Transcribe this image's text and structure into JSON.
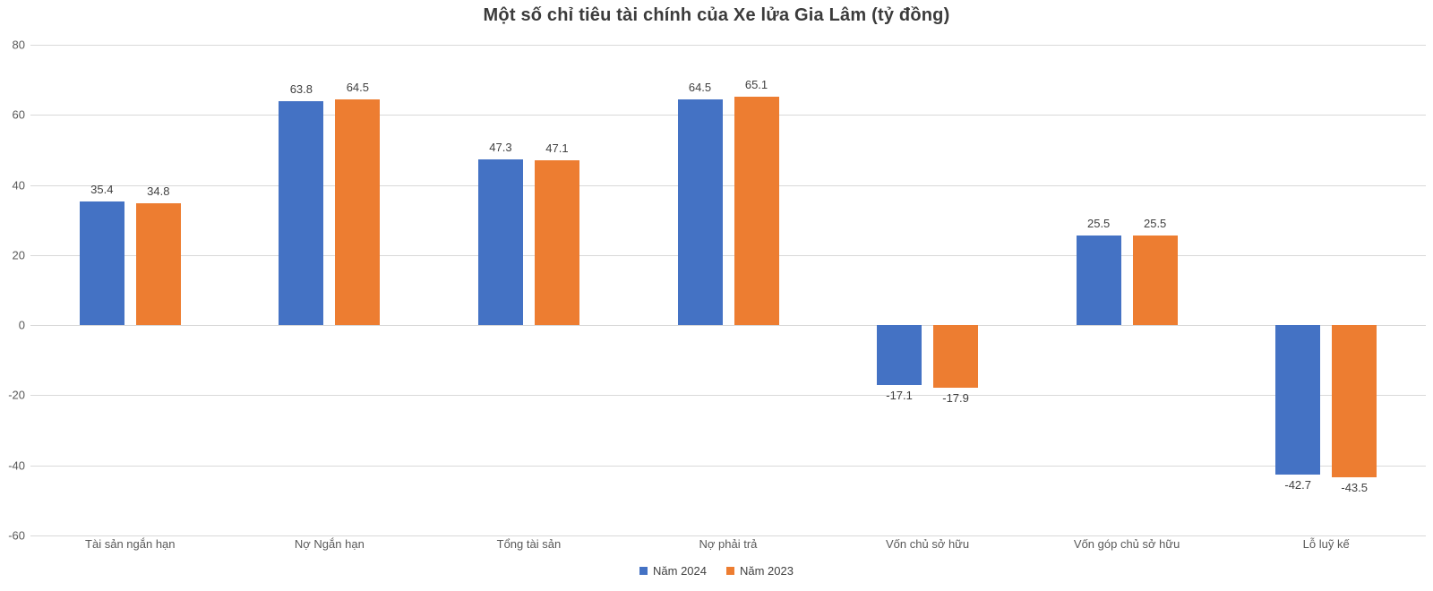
{
  "chart": {
    "title": "Một số chỉ tiêu tài chính của Xe lửa Gia Lâm (tỷ đồng)"
  },
  "chart_data": {
    "type": "bar",
    "title": "Một số chỉ tiêu tài chính của Xe lửa Gia Lâm (tỷ đồng)",
    "categories": [
      "Tài sản ngắn hạn",
      "Nợ Ngắn hạn",
      "Tổng tài sản",
      "Nợ phải trả",
      "Vốn chủ sở hữu",
      "Vốn góp chủ sở hữu",
      "Lỗ luỹ kế"
    ],
    "series": [
      {
        "name": "Năm 2024",
        "color": "#4472C4",
        "values": [
          35.4,
          63.8,
          47.3,
          64.5,
          -17.1,
          25.5,
          -42.7
        ]
      },
      {
        "name": "Năm 2023",
        "color": "#ED7D31",
        "values": [
          34.8,
          64.5,
          47.1,
          65.1,
          -17.9,
          25.5,
          -43.5
        ]
      }
    ],
    "ylim": [
      -60,
      80
    ],
    "yticks": [
      80,
      60,
      40,
      20,
      0,
      -20,
      -40,
      -60
    ],
    "grid": true,
    "legend_position": "bottom",
    "value_labels": true,
    "colors": {
      "gridline": "#D9D9D9",
      "tick_text": "#595959",
      "category_text": "#595959",
      "value_text": "#404040",
      "title_text": "#3B3B3B",
      "background": "#FFFFFF"
    }
  }
}
